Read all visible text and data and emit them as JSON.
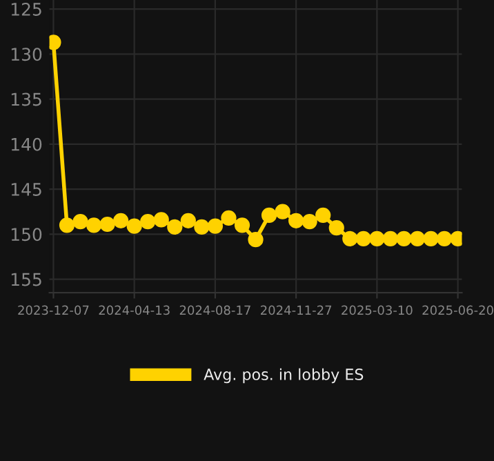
{
  "chart_data": {
    "type": "line",
    "categories": [
      "2023-12-07",
      null,
      null,
      null,
      null,
      null,
      "2024-04-13",
      null,
      null,
      null,
      null,
      null,
      "2024-08-17",
      null,
      null,
      null,
      null,
      null,
      "2024-11-27",
      null,
      null,
      null,
      null,
      null,
      "2025-03-10",
      null,
      null,
      null,
      null,
      null,
      "2025-06-20"
    ],
    "series": [
      {
        "name": "Avg. pos. in lobby ES",
        "color": "#ffd200",
        "values": [
          128.7,
          149.0,
          148.6,
          149.0,
          148.9,
          148.5,
          149.1,
          148.6,
          148.4,
          149.2,
          148.5,
          149.2,
          149.1,
          148.2,
          149.0,
          150.6,
          147.9,
          147.5,
          148.5,
          148.6,
          147.9,
          149.3,
          150.5,
          150.5,
          150.5,
          150.5,
          150.5,
          150.5,
          150.5,
          150.5,
          150.5
        ]
      }
    ],
    "ylim": [
      156.5,
      124
    ],
    "yticks": [
      125,
      130,
      135,
      140,
      145,
      150,
      155
    ],
    "grid": true,
    "legend": "bottom",
    "marker": "circle",
    "line_style": "solid"
  }
}
